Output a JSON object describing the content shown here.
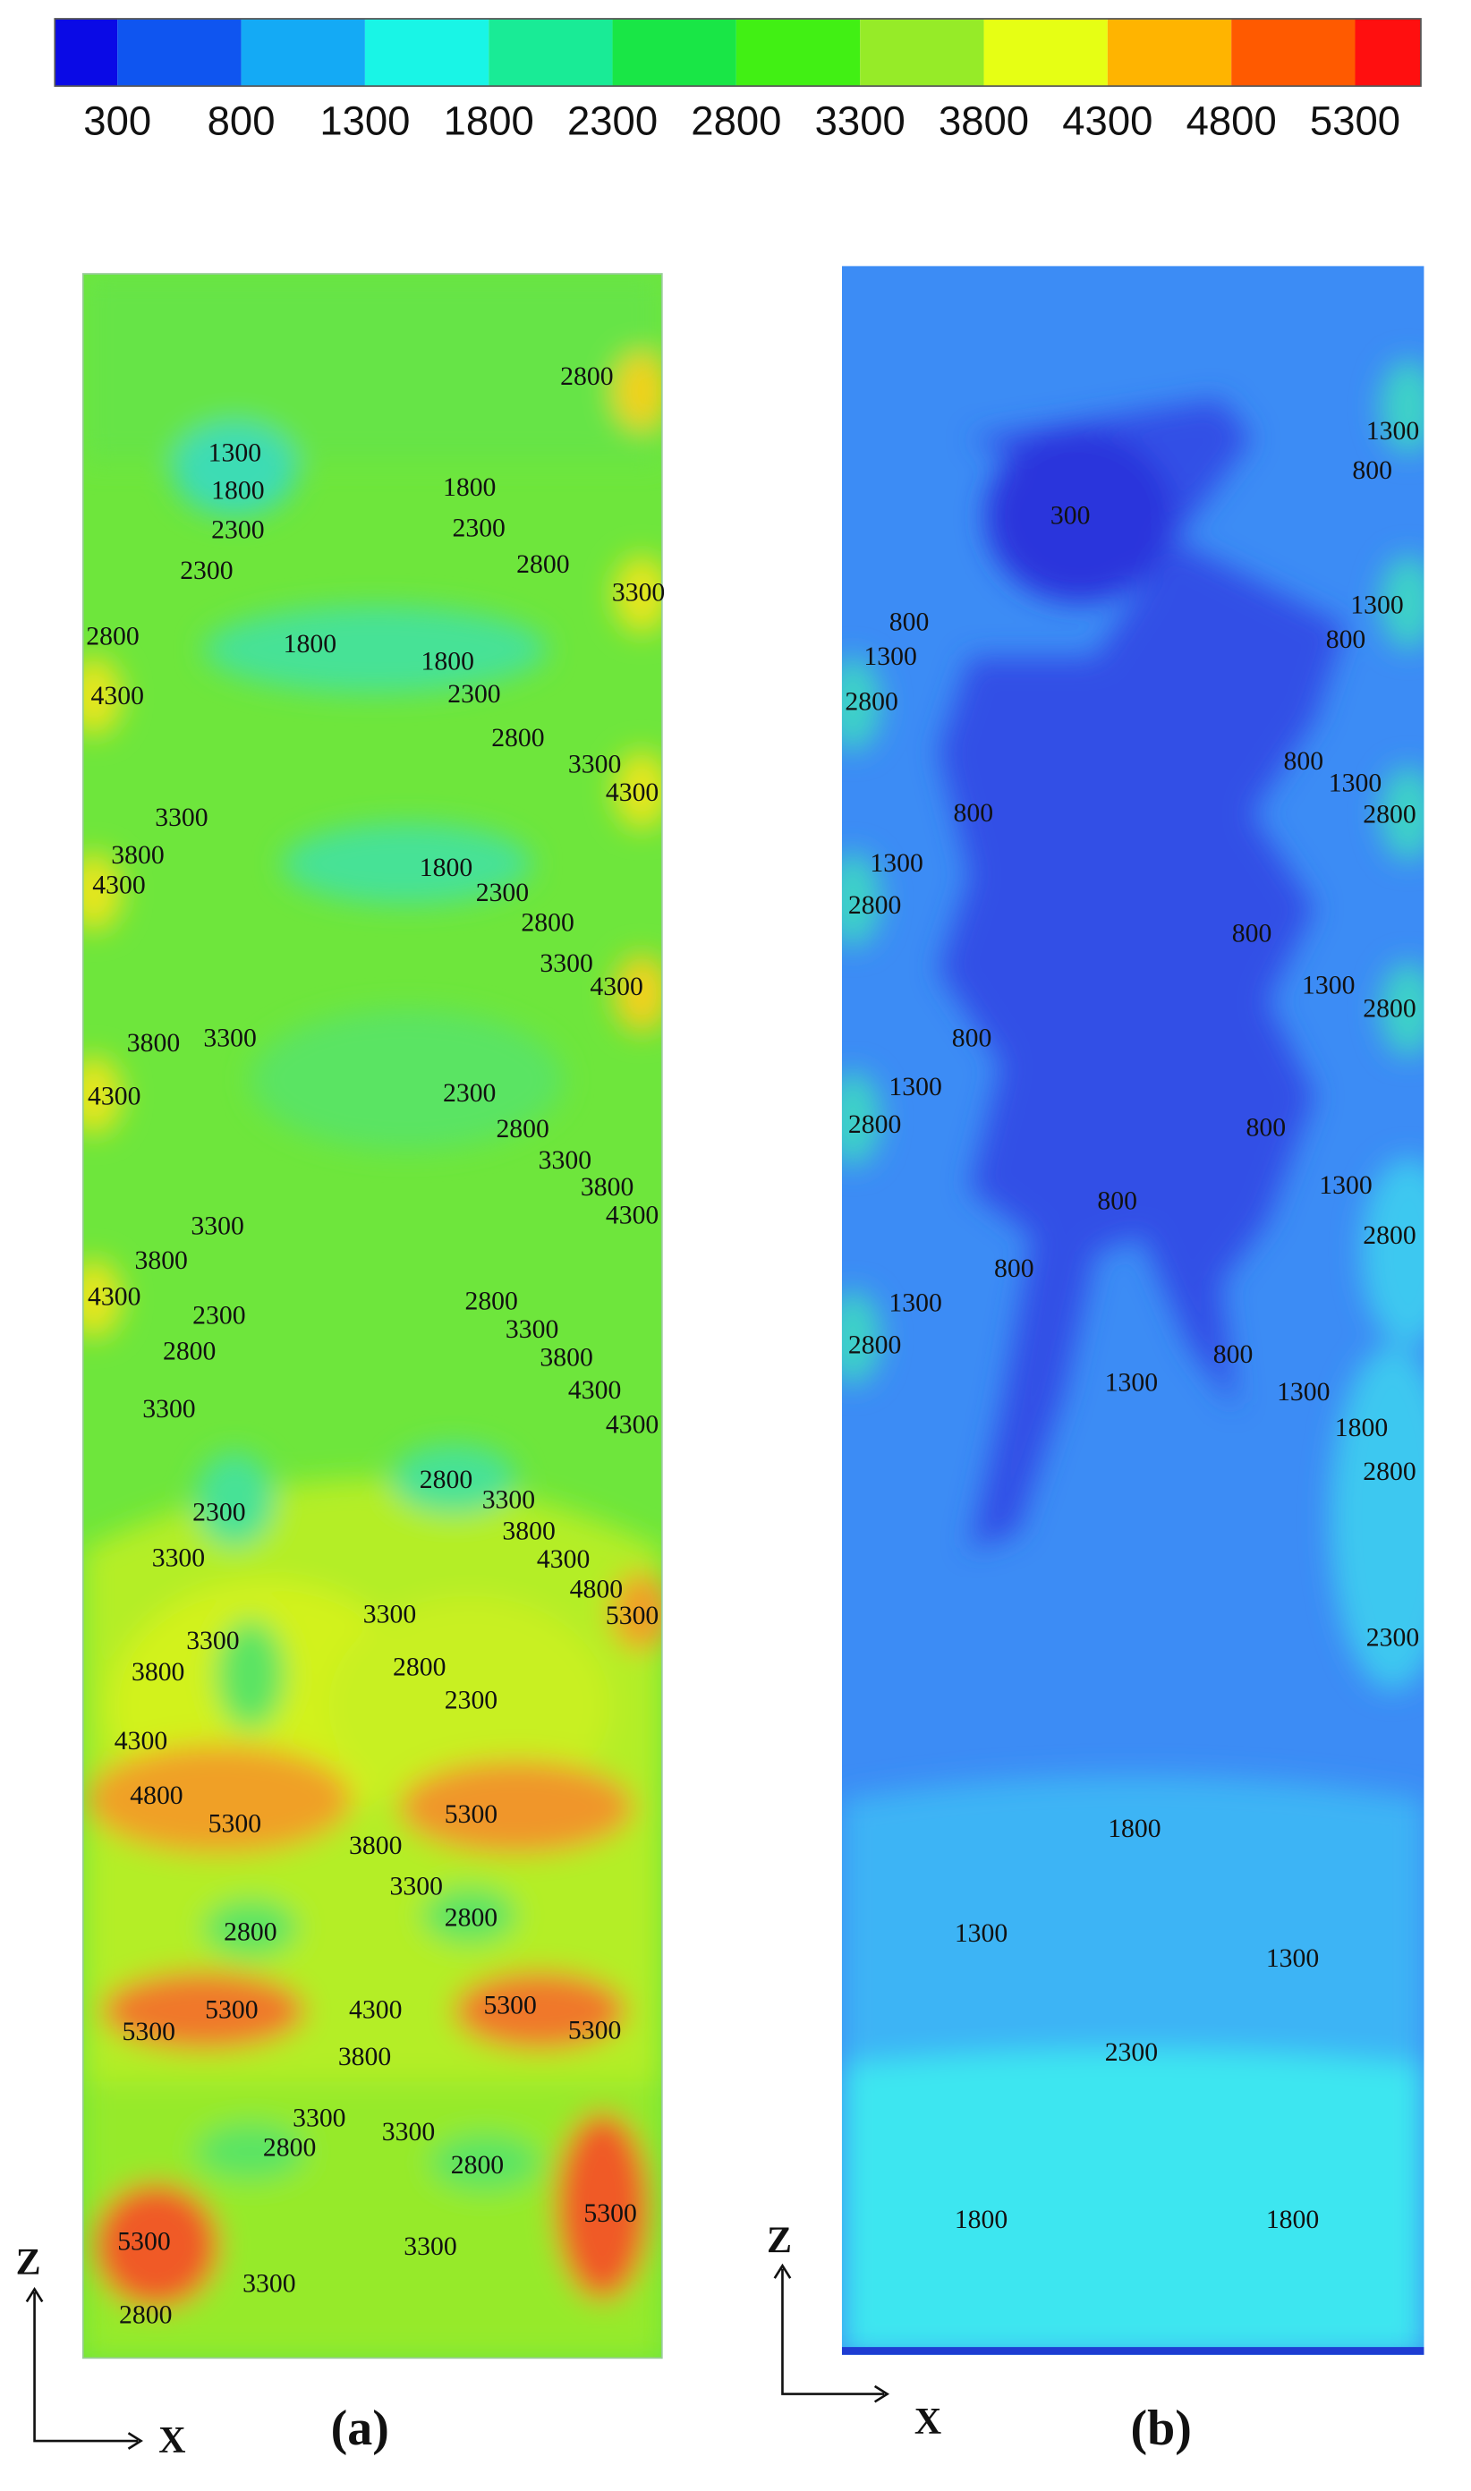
{
  "colorbar": {
    "levels": [
      300,
      800,
      1300,
      1800,
      2300,
      2800,
      3300,
      3800,
      4300,
      4800,
      5300
    ],
    "colors": [
      "#0a0ae6",
      "#0f55f0",
      "#14aaf5",
      "#19f5e6",
      "#19eb96",
      "#19e646",
      "#41f014",
      "#96eb28",
      "#e6ff14",
      "#ffb400",
      "#ff5a00",
      "#ff0f0f"
    ]
  },
  "panels": [
    {
      "caption": "(a)",
      "vertical_axis": "Z",
      "horizontal_axis": "X",
      "contour_labels": [
        1300,
        1800,
        2300,
        2300,
        1800,
        2300,
        2800,
        2800,
        3300,
        2800,
        1800,
        1800,
        2300,
        4300,
        2800,
        3300,
        4300,
        3300,
        3800,
        4300,
        1800,
        2300,
        2800,
        3300,
        4300,
        3800,
        3300,
        4300,
        2300,
        2800,
        3300,
        3800,
        4300,
        3300,
        3800,
        4300,
        2300,
        2800,
        3300,
        3800,
        2800,
        4300,
        4300,
        3300,
        2800,
        3300,
        3800,
        2300,
        3300,
        4300,
        4800,
        5300,
        3300,
        3300,
        3800,
        2800,
        2300,
        4300,
        4800,
        5300,
        5300,
        3800,
        3300,
        2800,
        2800,
        5300,
        4300,
        5300,
        5300,
        5300,
        3800,
        3300,
        3300,
        2800,
        2800,
        5300,
        5300,
        3300,
        3300,
        2800
      ]
    },
    {
      "caption": "(b)",
      "vertical_axis": "Z",
      "horizontal_axis": "X",
      "contour_labels": [
        300,
        1300,
        800,
        1300,
        800,
        800,
        1300,
        2800,
        800,
        1300,
        2800,
        800,
        1300,
        2800,
        800,
        1300,
        2800,
        800,
        1300,
        2800,
        800,
        1300,
        2800,
        800,
        800,
        1300,
        2800,
        800,
        1300,
        1300,
        1800,
        2800,
        2300,
        1800,
        1300,
        1300,
        2300,
        1800,
        1800
      ]
    }
  ]
}
